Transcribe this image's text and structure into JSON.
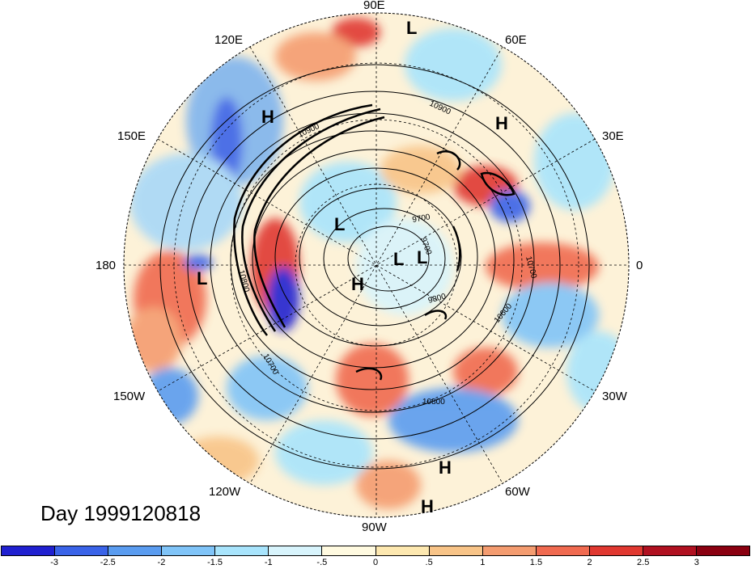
{
  "map": {
    "projection": "polar stereographic (north pole)",
    "longitude_labels": [
      "90E",
      "60E",
      "30E",
      "0",
      "30W",
      "60W",
      "90W",
      "120W",
      "150W",
      "180",
      "150E",
      "120E"
    ],
    "pressure_centers": [
      "L",
      "L",
      "L",
      "L",
      "L",
      "H",
      "H",
      "H",
      "H",
      "H"
    ],
    "contour_labels": [
      "10900",
      "10900",
      "10800",
      "9700",
      "9700",
      "9800",
      "10700",
      "10600",
      "10700",
      "10800"
    ],
    "day_label": "Day 1999120818"
  },
  "colorbar": {
    "tick_labels": [
      "-3",
      "-2.5",
      "-2",
      "-1.5",
      "-1",
      "-.5",
      "0",
      ".5",
      "1",
      "1.5",
      "2",
      "2.5",
      "3"
    ],
    "colors": [
      "#2020d0",
      "#3a63e8",
      "#5a9cf0",
      "#80c4f8",
      "#a8e4fc",
      "#d8f4fc",
      "#fffae0",
      "#fde8b0",
      "#f8c488",
      "#f49c70",
      "#f06a50",
      "#e03830",
      "#b01020",
      "#8a0010"
    ]
  }
}
